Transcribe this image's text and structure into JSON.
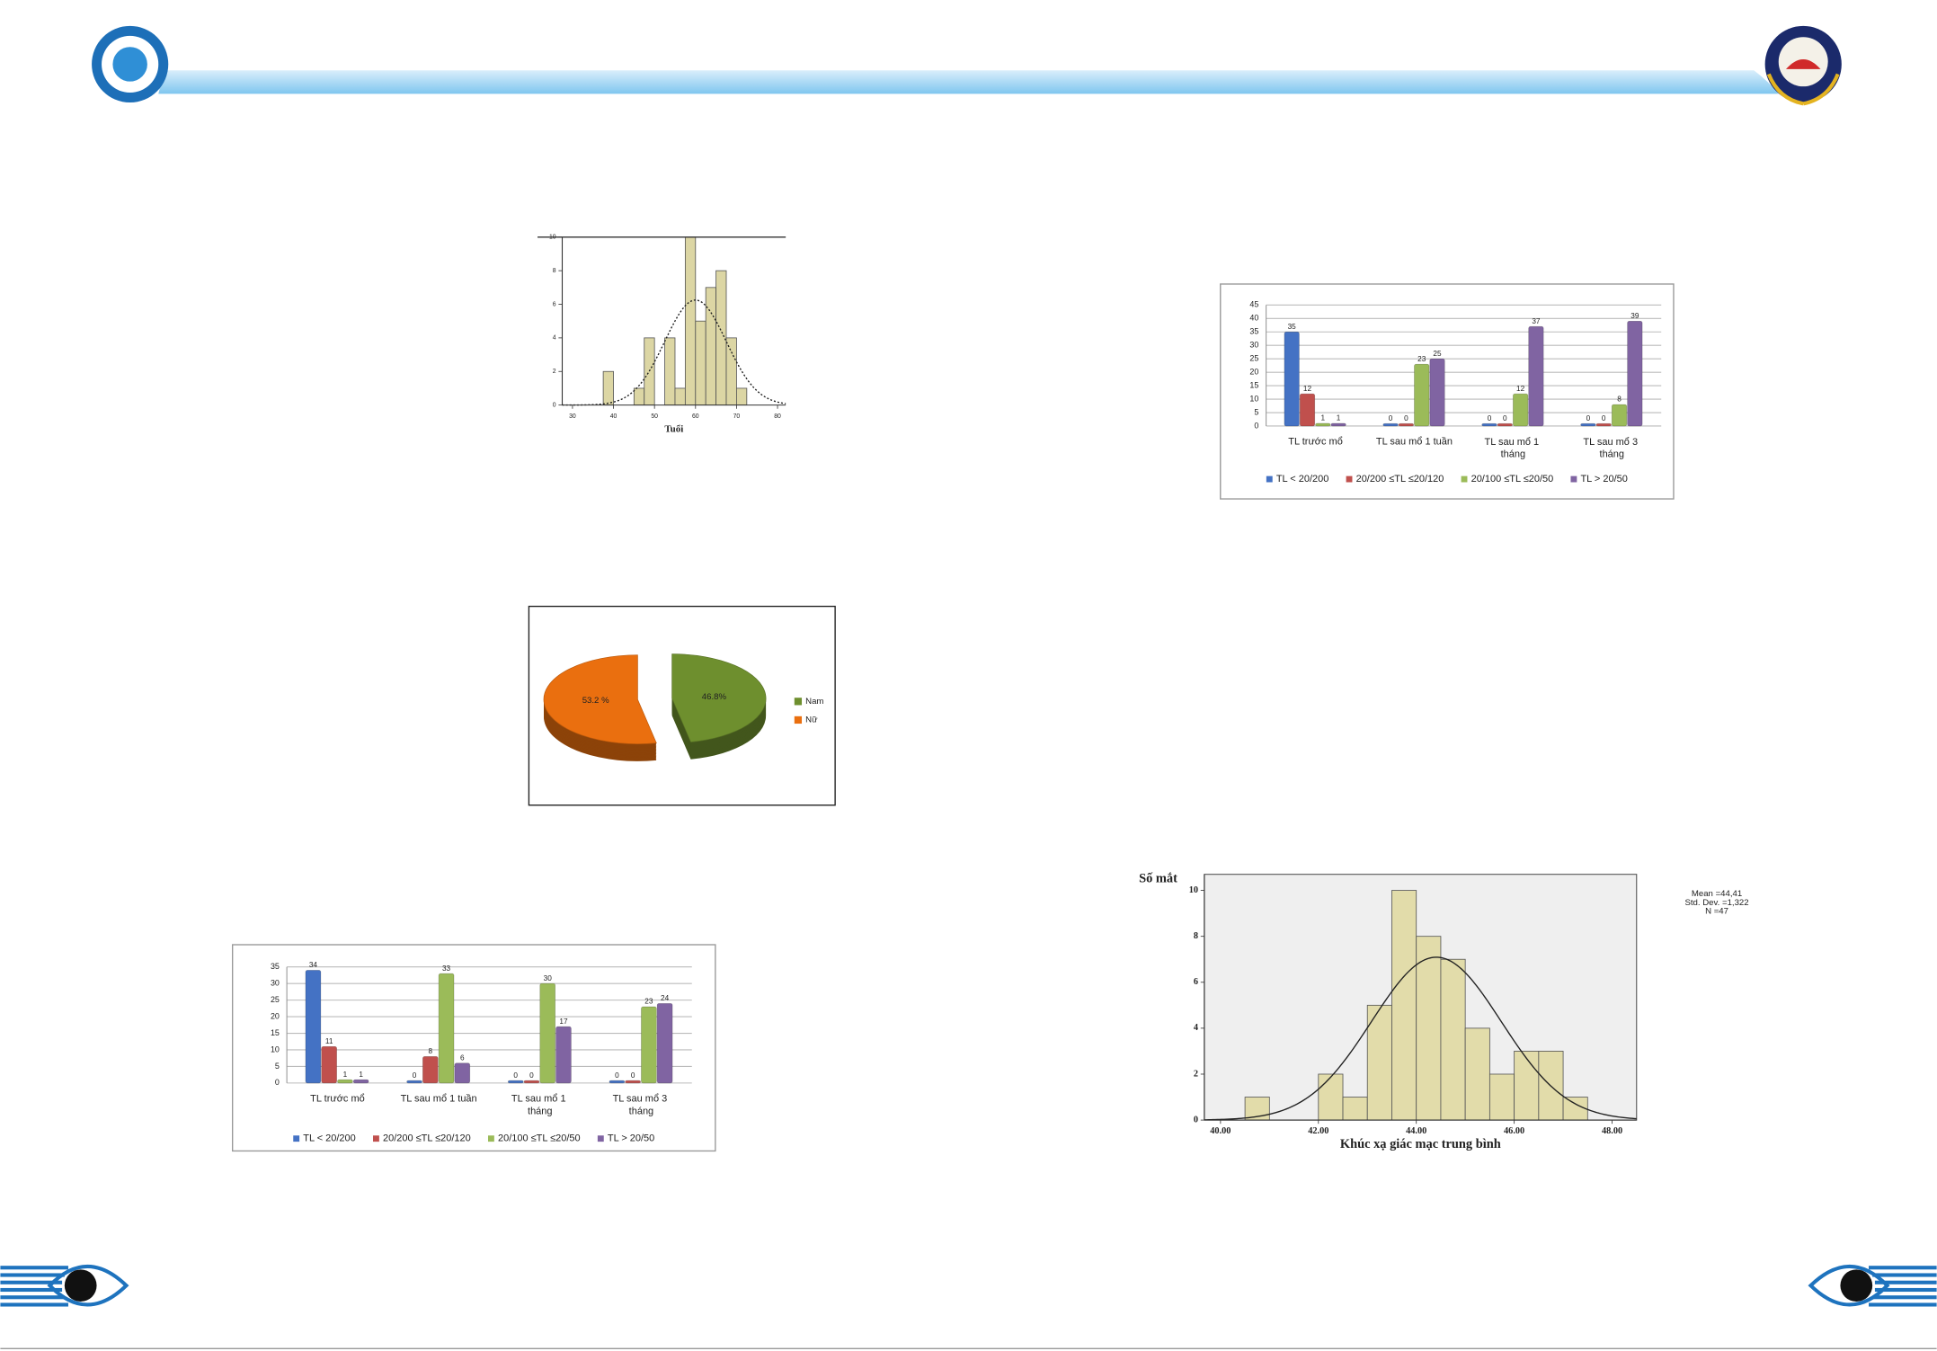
{
  "chart_data": [
    {
      "type": "histogram",
      "x_label": "Tuổi",
      "bins": [
        37.5,
        40,
        42.5,
        45,
        47.5,
        50,
        52.5,
        55,
        57.5,
        60,
        62.5,
        65,
        67.5,
        70,
        72.5
      ],
      "counts": [
        2,
        0,
        0,
        1,
        4,
        0,
        4,
        1,
        10,
        5,
        7,
        8,
        4,
        1
      ],
      "xlim": [
        27.5,
        82
      ],
      "ylim": [
        0,
        10
      ],
      "xticks": [
        30,
        40,
        50,
        60,
        70,
        80
      ],
      "yticks": [
        0,
        2,
        4,
        6,
        8,
        10
      ],
      "color": "#dcd6a4",
      "curve_style": "dotted",
      "normal": {
        "mean": 60,
        "sd": 7.5,
        "n": 47
      }
    },
    {
      "type": "pie",
      "categories": [
        "Nam",
        "Nữ"
      ],
      "values": [
        46.8,
        53.2
      ],
      "value_labels": [
        "46.8%",
        "53.2 %"
      ],
      "colors": [
        "#6e8f2e",
        "#ea6f0f"
      ],
      "legend": "right"
    },
    {
      "type": "bar",
      "categories": [
        "TL trước mổ",
        "TL sau mổ 1 tuần",
        "TL sau mổ 1 tháng",
        "TL sau mổ 3 tháng"
      ],
      "series": [
        {
          "name": "TL < 20/200",
          "color": "#4472c4",
          "values": [
            34,
            0,
            0,
            0
          ]
        },
        {
          "name": "20/200 ≤TL ≤20/120",
          "color": "#c0504d",
          "values": [
            11,
            8,
            0,
            0
          ]
        },
        {
          "name": "20/100 ≤TL ≤20/50",
          "color": "#9bbb59",
          "values": [
            1,
            33,
            30,
            23
          ]
        },
        {
          "name": "TL > 20/50",
          "color": "#8064a2",
          "values": [
            1,
            6,
            17,
            24
          ]
        }
      ],
      "ylim": [
        0,
        35
      ],
      "yticks": [
        0,
        5,
        10,
        15,
        20,
        25,
        30,
        35
      ],
      "grid": true,
      "legend": "bottom",
      "data_labels": true
    },
    {
      "type": "bar",
      "categories": [
        "TL trước mổ",
        "TL sau mổ 1 tuần",
        "TL sau mổ 1 tháng",
        "TL sau mổ 3 tháng"
      ],
      "series": [
        {
          "name": "TL < 20/200",
          "color": "#4472c4",
          "values": [
            35,
            0,
            0,
            0
          ]
        },
        {
          "name": "20/200 ≤TL ≤20/120",
          "color": "#c0504d",
          "values": [
            12,
            0,
            0,
            0
          ]
        },
        {
          "name": "20/100 ≤TL ≤20/50",
          "color": "#9bbb59",
          "values": [
            1,
            23,
            12,
            8
          ]
        },
        {
          "name": "TL > 20/50",
          "color": "#8064a2",
          "values": [
            1,
            25,
            37,
            39
          ]
        }
      ],
      "ylim": [
        0,
        45
      ],
      "yticks": [
        0,
        5,
        10,
        15,
        20,
        25,
        30,
        35,
        40,
        45
      ],
      "grid": true,
      "legend": "bottom",
      "data_labels": true
    },
    {
      "type": "histogram",
      "y_label": "Số mắt",
      "x_label": "Khúc xạ giác mạc trung bình",
      "bins": [
        40.5,
        41,
        41.5,
        42,
        42.5,
        43,
        43.5,
        44,
        44.5,
        45,
        45.5,
        46,
        46.5,
        47,
        47.5
      ],
      "counts": [
        1,
        0,
        0,
        2,
        1,
        5,
        10,
        8,
        7,
        4,
        2,
        3,
        3,
        1
      ],
      "xlim": [
        39.67,
        48.5
      ],
      "ylim": [
        0,
        10.7
      ],
      "xticks": [
        {
          "value": 40,
          "label": "40.00"
        },
        {
          "value": 42,
          "label": "42.00"
        },
        {
          "value": 44,
          "label": "44.00"
        },
        {
          "value": 46,
          "label": "46.00"
        },
        {
          "value": 48,
          "label": "48.00"
        }
      ],
      "yticks": [
        0,
        2,
        4,
        6,
        8,
        10
      ],
      "color": "#e2dcaa",
      "background": "#efefef",
      "curve_style": "solid",
      "normal": {
        "mean": {
          "value": 44.41,
          "label": "Mean =44,41"
        },
        "sd": {
          "value": 1.322,
          "label": "Std. Dev. =1,322"
        },
        "n": {
          "value": 47,
          "label": "N =47"
        }
      }
    }
  ]
}
